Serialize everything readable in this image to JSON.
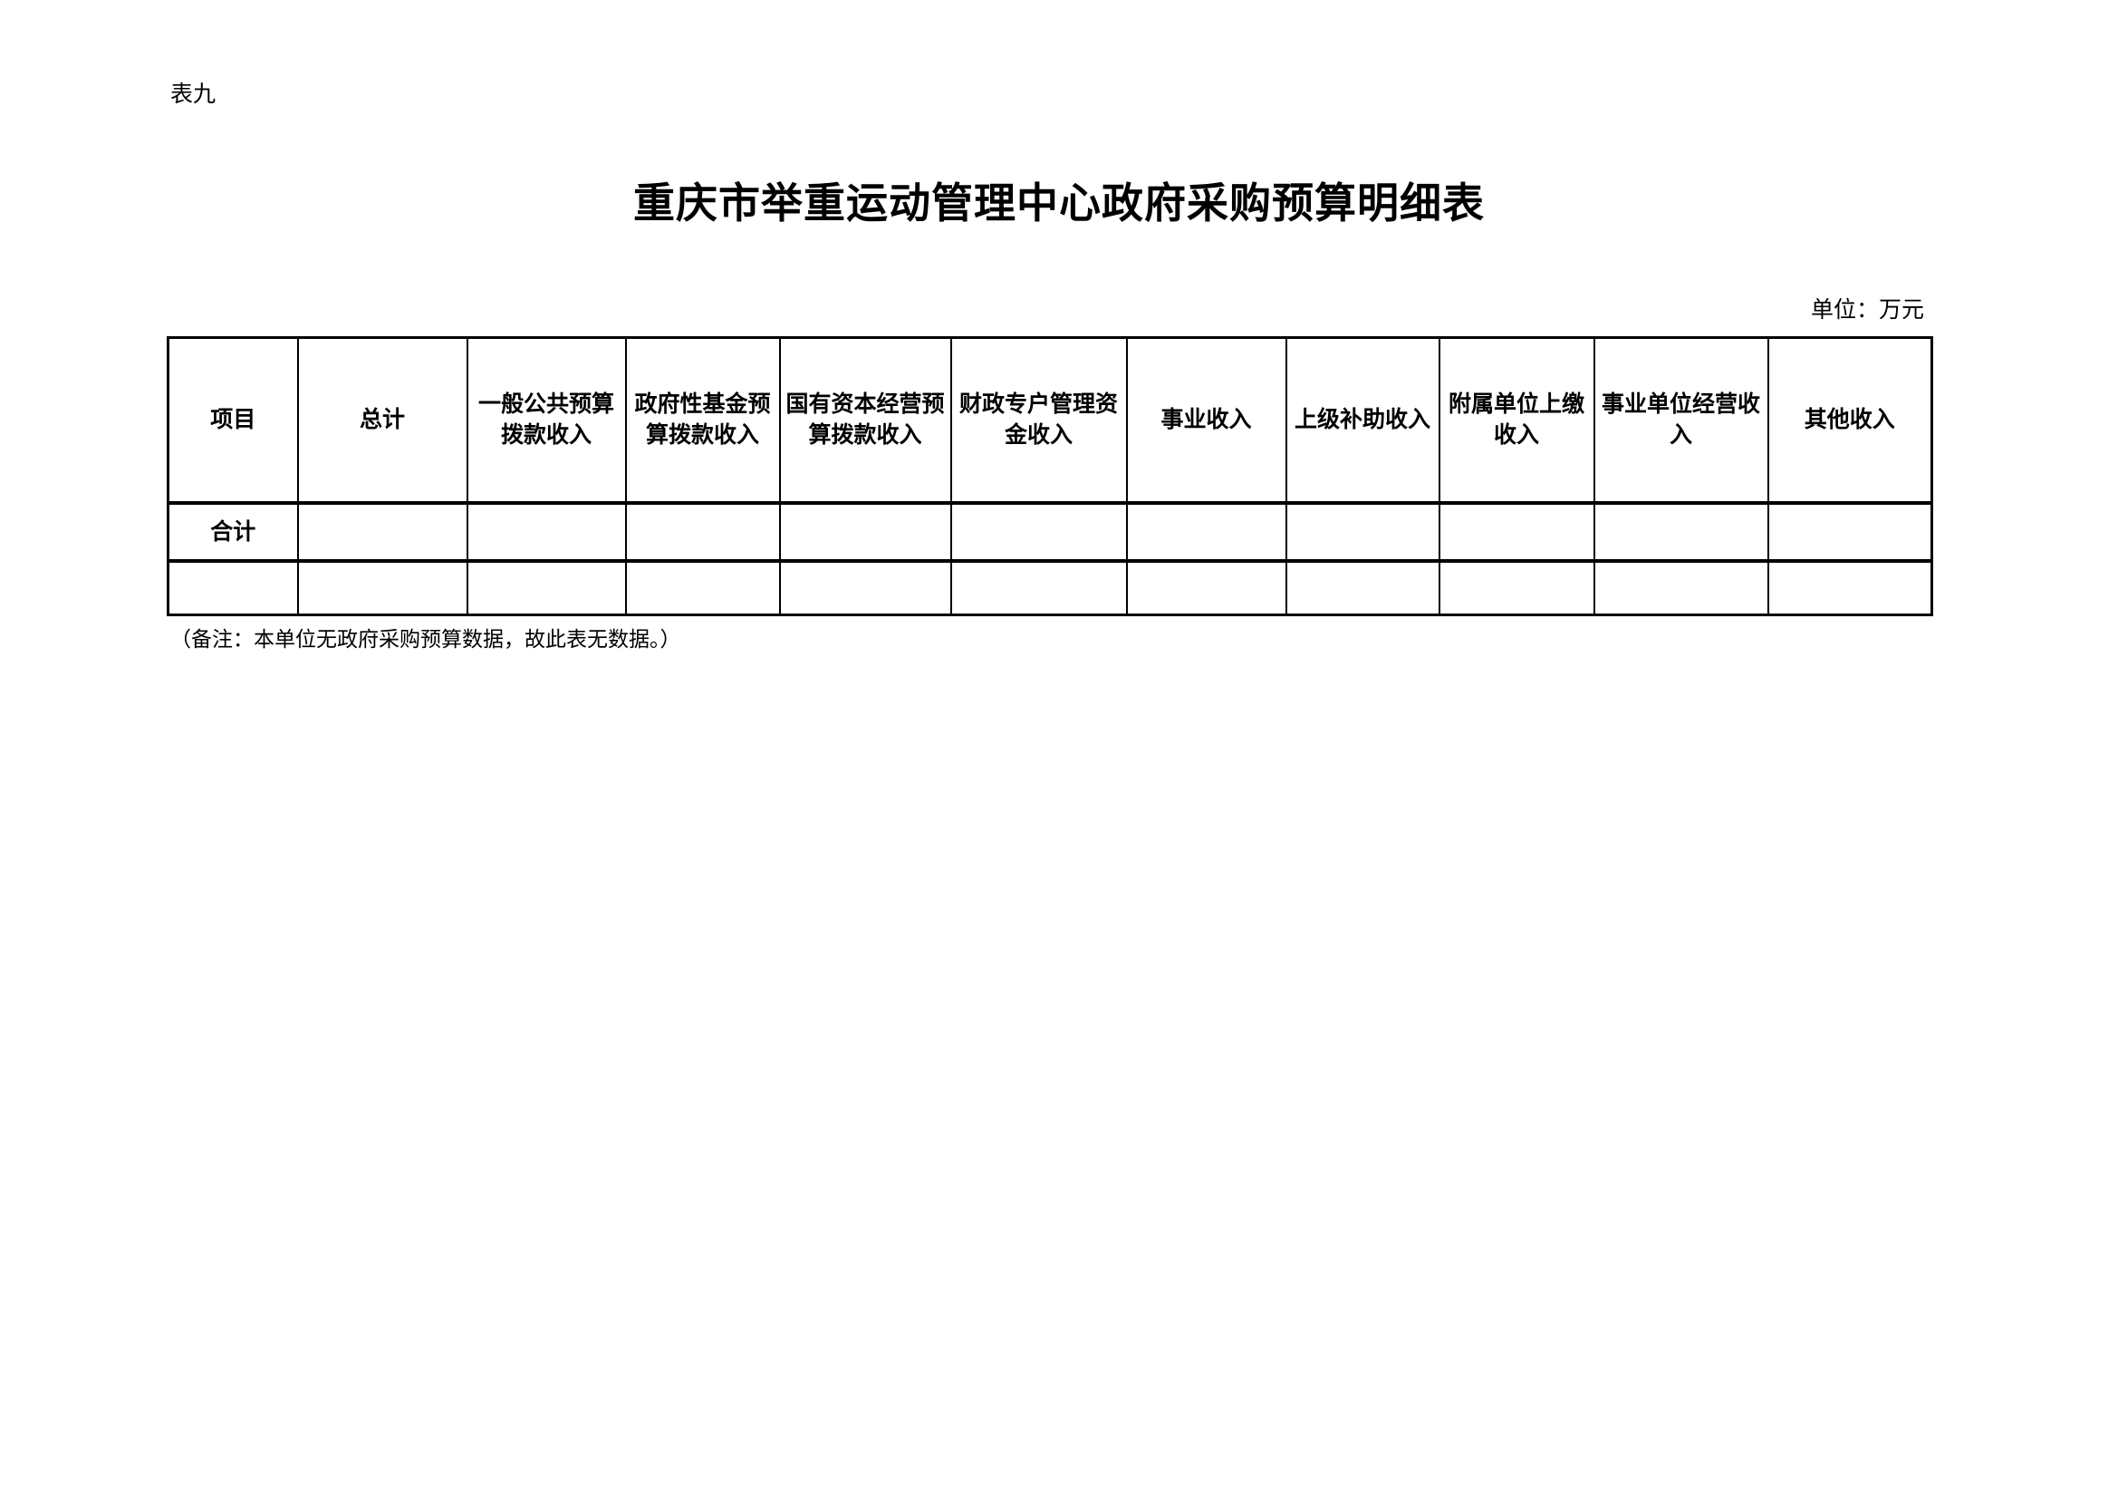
{
  "table_label": "表九",
  "title": "重庆市举重运动管理中心政府采购预算明细表",
  "unit": "单位：万元",
  "table": {
    "headers": [
      "项目",
      "总计",
      "一般公共预算拨款收入",
      "政府性基金预算拨款收入",
      "国有资本经营预算拨款收入",
      "财政专户管理资金收入",
      "事业收入",
      "上级补助收入",
      "附属单位上缴收入",
      "事业单位经营收入",
      "其他收入"
    ],
    "rows": [
      [
        "合计",
        "",
        "",
        "",
        "",
        "",
        "",
        "",
        "",
        "",
        ""
      ],
      [
        "",
        "",
        "",
        "",
        "",
        "",
        "",
        "",
        "",
        "",
        ""
      ]
    ]
  },
  "note": "（备注：本单位无政府采购预算数据，故此表无数据。）"
}
